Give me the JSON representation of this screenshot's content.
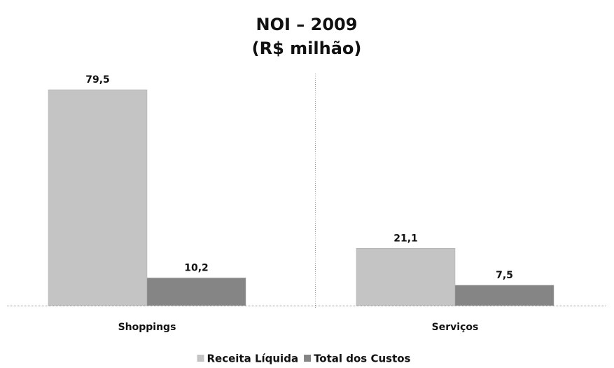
{
  "chart_data": {
    "type": "bar",
    "title": "NOI – 2009",
    "subtitle": "(R$ milhão)",
    "categories": [
      "Shoppings",
      "Serviços"
    ],
    "series": [
      {
        "name": "Receita Líquida",
        "color": "#c4c4c4",
        "values": [
          79.5,
          21.1
        ],
        "value_labels": [
          "79,5",
          "21,1"
        ]
      },
      {
        "name": "Total dos Custos",
        "color": "#858585",
        "values": [
          10.2,
          7.5
        ],
        "value_labels": [
          "10,2",
          "7,5"
        ]
      }
    ]
  }
}
